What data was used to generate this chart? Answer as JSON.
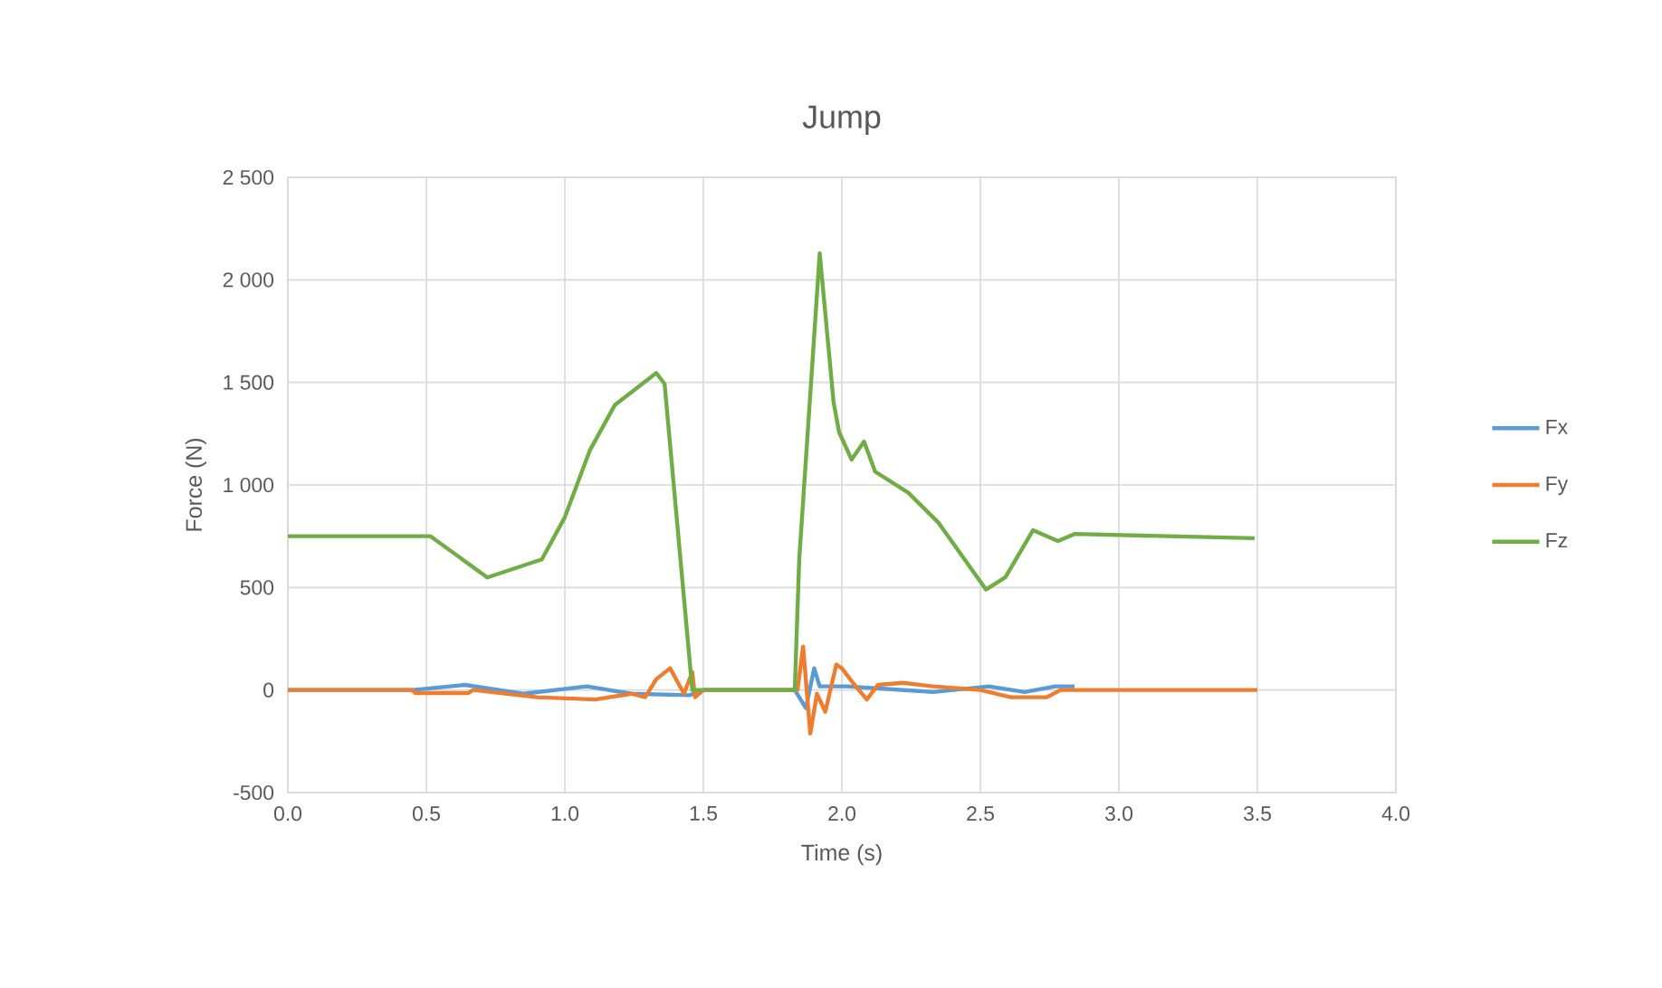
{
  "chart_data": {
    "type": "line",
    "title": "Jump",
    "xlabel": "Time (s)",
    "ylabel": "Force (N)",
    "xlim": [
      0,
      4
    ],
    "xticks": [
      {
        "value": 0,
        "label": "0.0"
      },
      {
        "value": 0.5,
        "label": "0.5"
      },
      {
        "value": 1,
        "label": "1.0"
      },
      {
        "value": 1.5,
        "label": "1.5"
      },
      {
        "value": 2,
        "label": "2.0"
      },
      {
        "value": 2.5,
        "label": "2.5"
      },
      {
        "value": 3,
        "label": "3.0"
      },
      {
        "value": 3.5,
        "label": "3.5"
      },
      {
        "value": 4,
        "label": "4.0"
      }
    ],
    "ylim": [
      -500,
      2500
    ],
    "yticks": [
      -500,
      0,
      500,
      {
        "value": 1000,
        "label": "1 000"
      },
      {
        "value": 1500,
        "label": "1 500"
      },
      {
        "value": 2000,
        "label": "2 000"
      },
      {
        "value": 2500,
        "label": "2 500"
      }
    ],
    "grid": true,
    "legend": "right",
    "marker": "none",
    "line_style": "solid",
    "series": [
      {
        "name": "Fx",
        "color": "#5b9bd5",
        "x": [
          0,
          0.45,
          0.64,
          0.85,
          1.08,
          1.24,
          1.45,
          1.5,
          1.83,
          1.87,
          1.9,
          1.92,
          2.02,
          2.33,
          2.53,
          2.66,
          2.77,
          2.84
        ],
        "values": [
          0,
          0,
          25,
          -18,
          18,
          -18,
          -25,
          0,
          0,
          -88,
          106,
          18,
          18,
          -10,
          18,
          -10,
          18,
          18
        ]
      },
      {
        "name": "Fy",
        "color": "#ed7d31",
        "x": [
          0,
          0.45,
          0.46,
          0.65,
          0.67,
          0.9,
          1.11,
          1.24,
          1.29,
          1.33,
          1.38,
          1.43,
          1.46,
          1.47,
          1.5,
          1.84,
          1.86,
          1.886,
          1.91,
          1.94,
          1.98,
          2.0,
          2.04,
          2.09,
          2.13,
          2.22,
          2.33,
          2.5,
          2.61,
          2.74,
          2.79,
          3.5
        ],
        "values": [
          0,
          0,
          -15,
          -15,
          0,
          -35,
          -46,
          -18,
          -35,
          53,
          106,
          -18,
          88,
          -35,
          0,
          0,
          212,
          -212,
          -18,
          -106,
          124,
          106,
          35,
          -46,
          25,
          35,
          18,
          0,
          -35,
          -35,
          0,
          0
        ]
      },
      {
        "name": "Fz",
        "color": "#70ad47",
        "x": [
          0,
          0.515,
          0.72,
          0.917,
          1.0,
          1.09,
          1.18,
          1.33,
          1.36,
          1.46,
          1.83,
          1.846,
          1.92,
          1.97,
          1.99,
          2.035,
          2.08,
          2.12,
          2.24,
          2.35,
          2.52,
          2.59,
          2.69,
          2.78,
          2.84,
          3.49
        ],
        "values": [
          750,
          750,
          549,
          637,
          843,
          1168,
          1389,
          1546,
          1493,
          0,
          0,
          637,
          2130,
          1404,
          1257,
          1124,
          1212,
          1065,
          962,
          814,
          490,
          549,
          779,
          726,
          761,
          740
        ]
      }
    ]
  }
}
